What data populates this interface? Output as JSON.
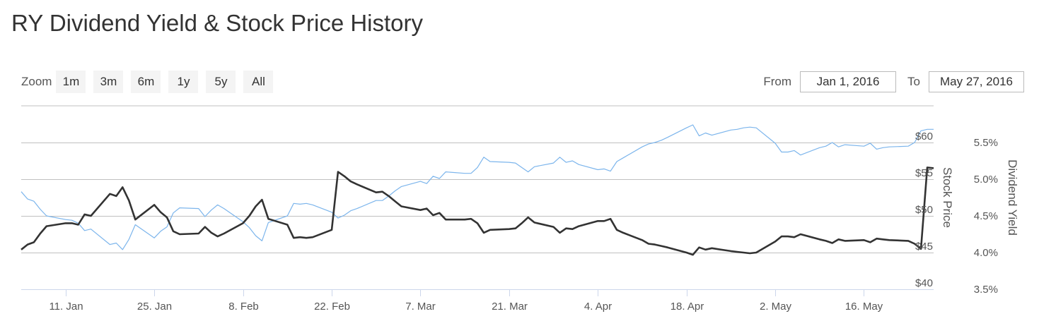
{
  "page": {
    "title": "RY Dividend Yield & Stock Price History"
  },
  "zoom": {
    "label": "Zoom",
    "buttons": [
      "1m",
      "3m",
      "6m",
      "1y",
      "5y",
      "All"
    ]
  },
  "range": {
    "from_label": "From",
    "from_value": "Jan 1, 2016",
    "to_label": "To",
    "to_value": "May 27, 2016"
  },
  "colors": {
    "price_line": "#333333",
    "yield_line": "#7cb5ec",
    "grid": "#c0c0c0",
    "axis": "#ccd6eb"
  },
  "chart_data": {
    "type": "line",
    "title": "RY Dividend Yield & Stock Price History",
    "x_start": "2016-01-04",
    "x_end": "2016-05-27",
    "x_tick_labels": [
      "11. Jan",
      "25. Jan",
      "8. Feb",
      "22. Feb",
      "7. Mar",
      "21. Mar",
      "4. Apr",
      "18. Apr",
      "2. May",
      "16. May"
    ],
    "x_tick_dates": [
      "2016-01-11",
      "2016-01-25",
      "2016-02-08",
      "2016-02-22",
      "2016-03-07",
      "2016-03-21",
      "2016-04-04",
      "2016-04-18",
      "2016-05-02",
      "2016-05-16"
    ],
    "y_price": {
      "label": "Stock Price",
      "ticks": [
        40,
        45,
        50,
        55,
        60
      ],
      "tick_labels": [
        "$40",
        "$45",
        "$50",
        "$55",
        "$60"
      ],
      "range": [
        40,
        65
      ]
    },
    "y_yield": {
      "label": "Dividend Yield",
      "ticks": [
        3.5,
        4.0,
        4.5,
        5.0,
        5.5
      ],
      "tick_labels": [
        "3.5%",
        "4.0%",
        "4.5%",
        "5.0%",
        "5.5%"
      ],
      "range": [
        3.5,
        6.0
      ]
    },
    "grid": true,
    "legend": "none",
    "series": [
      {
        "axis": "price",
        "color": "#7cb5ec",
        "points": [
          [
            "2016-01-04",
            53.3
          ],
          [
            "2016-01-05",
            52.3
          ],
          [
            "2016-01-06",
            52.0
          ],
          [
            "2016-01-07",
            50.9
          ],
          [
            "2016-01-08",
            50.0
          ],
          [
            "2016-01-11",
            49.5
          ],
          [
            "2016-01-12",
            49.4
          ],
          [
            "2016-01-13",
            49.0
          ],
          [
            "2016-01-14",
            48.0
          ],
          [
            "2016-01-15",
            48.2
          ],
          [
            "2016-01-18",
            46.1
          ],
          [
            "2016-01-19",
            46.3
          ],
          [
            "2016-01-20",
            45.4
          ],
          [
            "2016-01-21",
            46.8
          ],
          [
            "2016-01-22",
            48.8
          ],
          [
            "2016-01-25",
            47.0
          ],
          [
            "2016-01-26",
            47.9
          ],
          [
            "2016-01-27",
            48.5
          ],
          [
            "2016-01-28",
            50.4
          ],
          [
            "2016-01-29",
            51.1
          ],
          [
            "2016-02-01",
            51.0
          ],
          [
            "2016-02-02",
            49.9
          ],
          [
            "2016-02-03",
            50.8
          ],
          [
            "2016-02-04",
            51.5
          ],
          [
            "2016-02-05",
            51.0
          ],
          [
            "2016-02-08",
            49.2
          ],
          [
            "2016-02-09",
            48.4
          ],
          [
            "2016-02-10",
            47.3
          ],
          [
            "2016-02-11",
            46.6
          ],
          [
            "2016-02-12",
            49.1
          ],
          [
            "2016-02-15",
            50.0
          ],
          [
            "2016-02-16",
            51.7
          ],
          [
            "2016-02-17",
            51.6
          ],
          [
            "2016-02-18",
            51.7
          ],
          [
            "2016-02-19",
            51.5
          ],
          [
            "2016-02-22",
            50.5
          ],
          [
            "2016-02-23",
            49.7
          ],
          [
            "2016-02-24",
            50.1
          ],
          [
            "2016-02-25",
            50.7
          ],
          [
            "2016-02-26",
            51.0
          ],
          [
            "2016-02-29",
            52.1
          ],
          [
            "2016-03-01",
            52.1
          ],
          [
            "2016-03-02",
            52.7
          ],
          [
            "2016-03-03",
            53.4
          ],
          [
            "2016-03-04",
            54.0
          ],
          [
            "2016-03-07",
            54.7
          ],
          [
            "2016-03-08",
            54.4
          ],
          [
            "2016-03-09",
            55.4
          ],
          [
            "2016-03-10",
            55.1
          ],
          [
            "2016-03-11",
            56.0
          ],
          [
            "2016-03-14",
            55.8
          ],
          [
            "2016-03-15",
            55.8
          ],
          [
            "2016-03-16",
            56.6
          ],
          [
            "2016-03-17",
            58.0
          ],
          [
            "2016-03-18",
            57.4
          ],
          [
            "2016-03-21",
            57.3
          ],
          [
            "2016-03-22",
            57.2
          ],
          [
            "2016-03-23",
            56.6
          ],
          [
            "2016-03-24",
            56.0
          ],
          [
            "2016-03-25",
            56.7
          ],
          [
            "2016-03-28",
            57.2
          ],
          [
            "2016-03-29",
            58.0
          ],
          [
            "2016-03-30",
            57.3
          ],
          [
            "2016-03-31",
            57.5
          ],
          [
            "2016-04-01",
            57.0
          ],
          [
            "2016-04-04",
            56.3
          ],
          [
            "2016-04-05",
            56.4
          ],
          [
            "2016-04-06",
            56.1
          ],
          [
            "2016-04-07",
            57.4
          ],
          [
            "2016-04-08",
            57.9
          ],
          [
            "2016-04-11",
            59.4
          ],
          [
            "2016-04-12",
            59.8
          ],
          [
            "2016-04-13",
            60.0
          ],
          [
            "2016-04-14",
            60.3
          ],
          [
            "2016-04-15",
            60.7
          ],
          [
            "2016-04-18",
            62.0
          ],
          [
            "2016-04-19",
            62.4
          ],
          [
            "2016-04-20",
            60.9
          ],
          [
            "2016-04-21",
            61.3
          ],
          [
            "2016-04-22",
            61.0
          ],
          [
            "2016-04-25",
            61.7
          ],
          [
            "2016-04-26",
            61.8
          ],
          [
            "2016-04-27",
            62.0
          ],
          [
            "2016-04-28",
            62.1
          ],
          [
            "2016-04-29",
            62.0
          ],
          [
            "2016-05-02",
            59.9
          ],
          [
            "2016-05-03",
            58.7
          ],
          [
            "2016-05-04",
            58.7
          ],
          [
            "2016-05-05",
            58.9
          ],
          [
            "2016-05-06",
            58.3
          ],
          [
            "2016-05-09",
            59.3
          ],
          [
            "2016-05-10",
            59.5
          ],
          [
            "2016-05-11",
            60.0
          ],
          [
            "2016-05-12",
            59.4
          ],
          [
            "2016-05-13",
            59.7
          ],
          [
            "2016-05-16",
            59.5
          ],
          [
            "2016-05-17",
            59.9
          ],
          [
            "2016-05-18",
            59.1
          ],
          [
            "2016-05-19",
            59.3
          ],
          [
            "2016-05-20",
            59.4
          ],
          [
            "2016-05-23",
            59.5
          ],
          [
            "2016-05-24",
            60.0
          ],
          [
            "2016-05-25",
            61.6
          ],
          [
            "2016-05-26",
            61.8
          ],
          [
            "2016-05-27",
            61.8
          ]
        ]
      },
      {
        "axis": "yield",
        "color": "#333333",
        "points": [
          [
            "2016-01-04",
            4.04
          ],
          [
            "2016-01-05",
            4.11
          ],
          [
            "2016-01-06",
            4.14
          ],
          [
            "2016-01-07",
            4.26
          ],
          [
            "2016-01-08",
            4.36
          ],
          [
            "2016-01-11",
            4.4
          ],
          [
            "2016-01-12",
            4.4
          ],
          [
            "2016-01-13",
            4.38
          ],
          [
            "2016-01-14",
            4.52
          ],
          [
            "2016-01-15",
            4.5
          ],
          [
            "2016-01-18",
            4.8
          ],
          [
            "2016-01-19",
            4.77
          ],
          [
            "2016-01-20",
            4.89
          ],
          [
            "2016-01-21",
            4.71
          ],
          [
            "2016-01-22",
            4.45
          ],
          [
            "2016-01-25",
            4.65
          ],
          [
            "2016-01-26",
            4.55
          ],
          [
            "2016-01-27",
            4.48
          ],
          [
            "2016-01-28",
            4.29
          ],
          [
            "2016-01-29",
            4.25
          ],
          [
            "2016-02-01",
            4.26
          ],
          [
            "2016-02-02",
            4.35
          ],
          [
            "2016-02-03",
            4.27
          ],
          [
            "2016-02-04",
            4.22
          ],
          [
            "2016-02-05",
            4.26
          ],
          [
            "2016-02-08",
            4.4
          ],
          [
            "2016-02-09",
            4.5
          ],
          [
            "2016-02-10",
            4.63
          ],
          [
            "2016-02-11",
            4.72
          ],
          [
            "2016-02-12",
            4.46
          ],
          [
            "2016-02-15",
            4.38
          ],
          [
            "2016-02-16",
            4.2
          ],
          [
            "2016-02-17",
            4.21
          ],
          [
            "2016-02-18",
            4.2
          ],
          [
            "2016-02-19",
            4.21
          ],
          [
            "2016-02-22",
            4.31
          ],
          [
            "2016-02-23",
            5.1
          ],
          [
            "2016-02-24",
            5.04
          ],
          [
            "2016-02-25",
            4.97
          ],
          [
            "2016-02-26",
            4.93
          ],
          [
            "2016-02-29",
            4.82
          ],
          [
            "2016-03-01",
            4.83
          ],
          [
            "2016-03-02",
            4.77
          ],
          [
            "2016-03-03",
            4.7
          ],
          [
            "2016-03-04",
            4.63
          ],
          [
            "2016-03-07",
            4.58
          ],
          [
            "2016-03-08",
            4.6
          ],
          [
            "2016-03-09",
            4.51
          ],
          [
            "2016-03-10",
            4.54
          ],
          [
            "2016-03-11",
            4.45
          ],
          [
            "2016-03-14",
            4.45
          ],
          [
            "2016-03-15",
            4.46
          ],
          [
            "2016-03-16",
            4.4
          ],
          [
            "2016-03-17",
            4.27
          ],
          [
            "2016-03-18",
            4.31
          ],
          [
            "2016-03-21",
            4.32
          ],
          [
            "2016-03-22",
            4.33
          ],
          [
            "2016-03-23",
            4.4
          ],
          [
            "2016-03-24",
            4.48
          ],
          [
            "2016-03-25",
            4.41
          ],
          [
            "2016-03-28",
            4.35
          ],
          [
            "2016-03-29",
            4.27
          ],
          [
            "2016-03-30",
            4.33
          ],
          [
            "2016-03-31",
            4.32
          ],
          [
            "2016-04-01",
            4.36
          ],
          [
            "2016-04-04",
            4.43
          ],
          [
            "2016-04-05",
            4.43
          ],
          [
            "2016-04-06",
            4.46
          ],
          [
            "2016-04-07",
            4.31
          ],
          [
            "2016-04-08",
            4.27
          ],
          [
            "2016-04-11",
            4.17
          ],
          [
            "2016-04-12",
            4.12
          ],
          [
            "2016-04-13",
            4.11
          ],
          [
            "2016-04-14",
            4.09
          ],
          [
            "2016-04-15",
            4.07
          ],
          [
            "2016-04-18",
            4.0
          ],
          [
            "2016-04-19",
            3.97
          ],
          [
            "2016-04-20",
            4.07
          ],
          [
            "2016-04-21",
            4.04
          ],
          [
            "2016-04-22",
            4.06
          ],
          [
            "2016-04-25",
            4.02
          ],
          [
            "2016-04-26",
            4.01
          ],
          [
            "2016-04-27",
            4.0
          ],
          [
            "2016-04-28",
            3.99
          ],
          [
            "2016-04-29",
            4.0
          ],
          [
            "2016-05-02",
            4.15
          ],
          [
            "2016-05-03",
            4.22
          ],
          [
            "2016-05-04",
            4.22
          ],
          [
            "2016-05-05",
            4.21
          ],
          [
            "2016-05-06",
            4.25
          ],
          [
            "2016-05-09",
            4.18
          ],
          [
            "2016-05-10",
            4.16
          ],
          [
            "2016-05-11",
            4.13
          ],
          [
            "2016-05-12",
            4.18
          ],
          [
            "2016-05-13",
            4.16
          ],
          [
            "2016-05-16",
            4.17
          ],
          [
            "2016-05-17",
            4.14
          ],
          [
            "2016-05-18",
            4.19
          ],
          [
            "2016-05-19",
            4.18
          ],
          [
            "2016-05-20",
            4.17
          ],
          [
            "2016-05-23",
            4.16
          ],
          [
            "2016-05-24",
            4.12
          ],
          [
            "2016-05-25",
            4.05
          ],
          [
            "2016-05-26",
            5.16
          ],
          [
            "2016-05-27",
            5.15
          ]
        ]
      }
    ]
  }
}
